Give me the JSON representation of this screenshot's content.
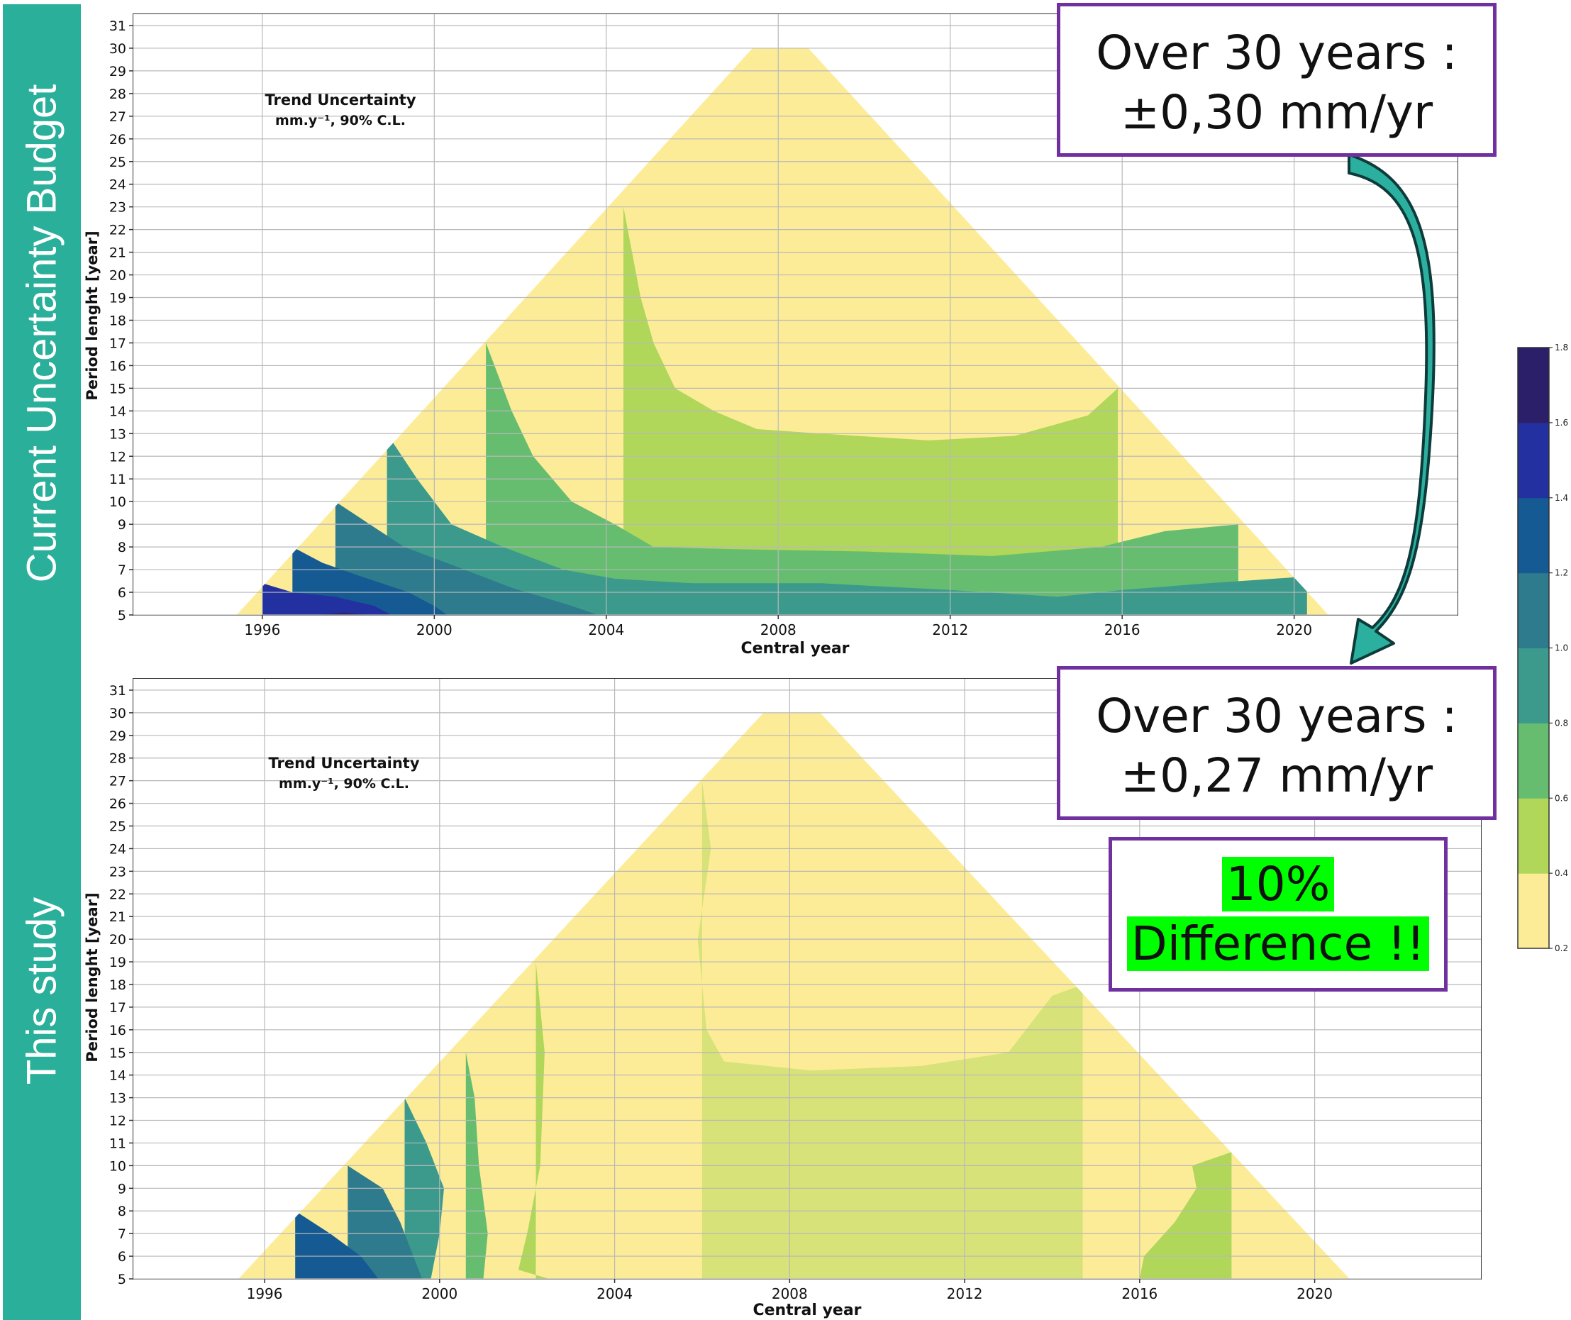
{
  "sidebar": {
    "top_label": "Current Uncertainty Budget",
    "bottom_label": "This study",
    "color": "#2aaf9a"
  },
  "callouts": {
    "top": {
      "line1": "Over 30 years :",
      "line2": "±0,30 mm/yr"
    },
    "bottom": {
      "line1": "Over 30 years :",
      "line2": "±0,27 mm/yr"
    },
    "difference": {
      "line1": "10%",
      "line2": "Difference !!",
      "highlight_color": "#00ff00"
    },
    "border_color": "#7030a0"
  },
  "arrow": {
    "color": "#2bb0a0",
    "outline": "#0d3b3a",
    "icon": "curved-arrow-down"
  },
  "colorbar": {
    "ticks": [
      "0.2",
      "0.4",
      "0.6",
      "0.8",
      "1.0",
      "1.2",
      "1.4",
      "1.6",
      "1.8"
    ],
    "colors": [
      "#fdec97",
      "#b0d75a",
      "#66bd70",
      "#3b9a8c",
      "#2e7b8d",
      "#155a93",
      "#22319f",
      "#2c1f6a"
    ]
  },
  "chart_data": [
    {
      "type": "heatmap",
      "title": "Trend Uncertainty",
      "subtitle": "mm.y⁻¹, 90% C.L.",
      "xlabel": "Central year",
      "ylabel": "Period lenght [year]",
      "xticks": [
        1996,
        2000,
        2004,
        2008,
        2012,
        2016,
        2020
      ],
      "yticks": [
        5,
        6,
        7,
        8,
        9,
        10,
        11,
        12,
        13,
        14,
        15,
        16,
        17,
        18,
        19,
        20,
        21,
        22,
        23,
        24,
        25,
        26,
        27,
        28,
        29,
        30,
        31
      ],
      "xlim": [
        1993,
        2023.8
      ],
      "ylim": [
        5,
        31.5
      ],
      "grid": true,
      "levels": [
        0.2,
        0.4,
        0.6,
        0.8,
        1.0,
        1.2,
        1.4,
        1.6,
        1.8
      ],
      "domain_polygon": [
        [
          1995.4,
          5
        ],
        [
          2007.4,
          30
        ],
        [
          2008.7,
          30
        ],
        [
          2020.8,
          5
        ]
      ],
      "contours": [
        {
          "level": 0.4,
          "points": [
            [
              2004.4,
              23
            ],
            [
              2004.8,
              19
            ],
            [
              2005.1,
              17
            ],
            [
              2005.6,
              15
            ],
            [
              2006.5,
              14
            ],
            [
              2007.5,
              13.2
            ],
            [
              2009.0,
              13.0
            ],
            [
              2011.5,
              12.7
            ],
            [
              2013.5,
              12.9
            ],
            [
              2015.2,
              13.8
            ],
            [
              2015.9,
              15
            ]
          ]
        },
        {
          "level": 0.6,
          "points": [
            [
              2001.2,
              17
            ],
            [
              2001.8,
              14
            ],
            [
              2002.3,
              12
            ],
            [
              2003.2,
              10
            ],
            [
              2004.2,
              9
            ],
            [
              2005.1,
              8
            ],
            [
              2007.0,
              7.9
            ],
            [
              2010.0,
              7.8
            ],
            [
              2013.0,
              7.6
            ],
            [
              2015.5,
              8.0
            ],
            [
              2017.0,
              8.7
            ],
            [
              2018.7,
              9
            ]
          ]
        },
        {
          "level": 0.8,
          "points": [
            [
              1998.9,
              13
            ],
            [
              1999.6,
              11
            ],
            [
              2000.4,
              9
            ],
            [
              2001.6,
              8
            ],
            [
              2003.0,
              7
            ],
            [
              2004.2,
              6.6
            ],
            [
              2006.0,
              6.4
            ],
            [
              2009.0,
              6.4
            ],
            [
              2012.0,
              6.1
            ],
            [
              2014.5,
              5.8
            ],
            [
              2016.0,
              6.1
            ],
            [
              2018.0,
              6.4
            ],
            [
              2020.3,
              6.7
            ]
          ]
        },
        {
          "level": 1.0,
          "points": [
            [
              1997.7,
              10
            ],
            [
              1998.5,
              9
            ],
            [
              1999.3,
              8
            ],
            [
              2000.7,
              7
            ],
            [
              2001.8,
              6.2
            ],
            [
              2003.2,
              5.4
            ],
            [
              2003.8,
              5
            ]
          ]
        },
        {
          "level": 1.2,
          "points": [
            [
              1996.7,
              8
            ],
            [
              1997.4,
              7.3
            ],
            [
              1998.3,
              6.7
            ],
            [
              1999.4,
              6
            ],
            [
              2000.0,
              5.4
            ],
            [
              2000.3,
              5
            ]
          ]
        },
        {
          "level": 1.4,
          "points": [
            [
              1996.0,
              6.4
            ],
            [
              1996.7,
              6.0
            ],
            [
              1997.7,
              5.8
            ],
            [
              1998.6,
              5.4
            ],
            [
              1999.0,
              5
            ]
          ]
        },
        {
          "level": 1.6,
          "points": [
            [
              1997.3,
              5
            ],
            [
              1997.9,
              5.1
            ],
            [
              1998.5,
              5
            ]
          ]
        }
      ]
    },
    {
      "type": "heatmap",
      "title": "Trend Uncertainty",
      "subtitle": "mm.y⁻¹, 90% C.L.",
      "xlabel": "Central year",
      "ylabel": "Period lenght [year]",
      "xticks": [
        1996,
        2000,
        2004,
        2008,
        2012,
        2016,
        2020
      ],
      "yticks": [
        5,
        6,
        7,
        8,
        9,
        10,
        11,
        12,
        13,
        14,
        15,
        16,
        17,
        18,
        19,
        20,
        21,
        22,
        23,
        24,
        25,
        26,
        27,
        28,
        29,
        30,
        31
      ],
      "xlim": [
        1993,
        2023.8
      ],
      "ylim": [
        5,
        31.5
      ],
      "grid": true,
      "levels": [
        0.2,
        0.3,
        0.4,
        0.6,
        0.8,
        1.0,
        1.2,
        1.4,
        1.6,
        1.8
      ],
      "domain_polygon": [
        [
          1995.4,
          5
        ],
        [
          2007.4,
          30
        ],
        [
          2008.7,
          30
        ],
        [
          2020.8,
          5
        ]
      ],
      "contours": [
        {
          "level": 0.3,
          "points": [
            [
              2006.0,
              27
            ],
            [
              2006.2,
              24
            ],
            [
              2005.9,
              20
            ],
            [
              2006.1,
              16
            ],
            [
              2006.5,
              14.6
            ],
            [
              2008.5,
              14.2
            ],
            [
              2011.0,
              14.4
            ],
            [
              2013.0,
              15
            ],
            [
              2014.0,
              17.5
            ],
            [
              2014.7,
              18
            ]
          ]
        },
        {
          "level": 0.4,
          "points": [
            [
              2002.2,
              19
            ],
            [
              2002.4,
              15
            ],
            [
              2002.3,
              10
            ],
            [
              2002.0,
              7
            ],
            [
              2001.8,
              5.4
            ],
            [
              2002.5,
              5
            ]
          ]
        },
        {
          "level": 0.4,
          "points": [
            [
              2016.0,
              5
            ],
            [
              2016.1,
              6
            ],
            [
              2016.8,
              7.5
            ],
            [
              2017.3,
              9
            ],
            [
              2017.2,
              10
            ],
            [
              2018.1,
              10.6
            ]
          ]
        },
        {
          "level": 0.6,
          "points": [
            [
              2000.6,
              15
            ],
            [
              2000.8,
              13
            ],
            [
              2000.9,
              10
            ],
            [
              2001.1,
              7
            ],
            [
              2001.0,
              5
            ]
          ]
        },
        {
          "level": 0.8,
          "points": [
            [
              1999.2,
              13
            ],
            [
              1999.7,
              11
            ],
            [
              2000.1,
              9
            ],
            [
              2000.0,
              7
            ],
            [
              1999.8,
              5
            ]
          ]
        },
        {
          "level": 1.0,
          "points": [
            [
              1997.9,
              10
            ],
            [
              1998.7,
              9
            ],
            [
              1999.1,
              7.5
            ],
            [
              1999.4,
              6
            ],
            [
              1999.6,
              5
            ]
          ]
        },
        {
          "level": 1.2,
          "points": [
            [
              1996.7,
              8
            ],
            [
              1997.5,
              7
            ],
            [
              1998.2,
              6
            ],
            [
              1998.6,
              5
            ]
          ]
        }
      ]
    }
  ]
}
